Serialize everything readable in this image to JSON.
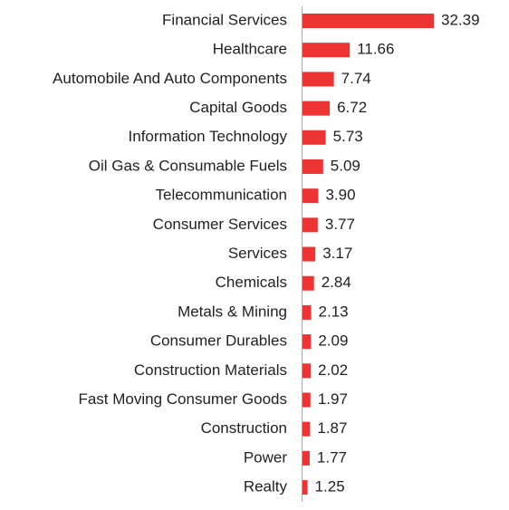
{
  "chart_data": {
    "type": "hbar",
    "color": "#ee3333",
    "categories": [
      "Financial Services",
      "Healthcare",
      "Automobile And Auto Components",
      "Capital Goods",
      "Information Technology",
      "Oil Gas & Consumable Fuels",
      "Telecommunication",
      "Consumer Services",
      "Services",
      "Chemicals",
      "Metals & Mining",
      "Consumer Durables",
      "Construction Materials",
      "Fast Moving Consumer Goods",
      "Construction",
      "Power",
      "Realty"
    ],
    "values": [
      32.39,
      11.66,
      7.74,
      6.72,
      5.73,
      5.09,
      3.9,
      3.77,
      3.17,
      2.84,
      2.13,
      2.09,
      2.02,
      1.97,
      1.87,
      1.77,
      1.25
    ],
    "value_labels": [
      "32.39",
      "11.66",
      "7.74",
      "6.72",
      "5.73",
      "5.09",
      "3.90",
      "3.77",
      "3.17",
      "2.84",
      "2.13",
      "2.09",
      "2.02",
      "1.97",
      "1.87",
      "1.77",
      "1.25"
    ]
  }
}
